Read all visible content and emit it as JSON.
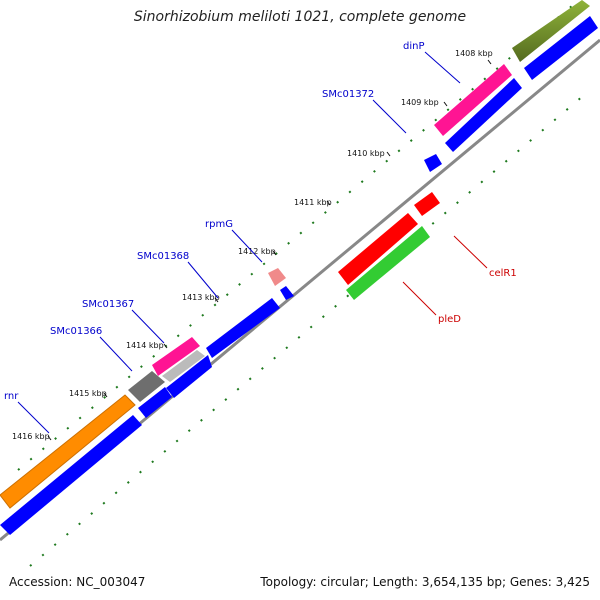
{
  "title": "Sinorhizobium meliloti 1021, complete genome",
  "footer": {
    "accession": "Accession: NC_003047",
    "summary": "Topology: circular; Length: 3,654,135 bp; Genes: 3,425"
  },
  "ticks": [
    {
      "label": "1408 kbp"
    },
    {
      "label": "1409 kbp"
    },
    {
      "label": "1410 kbp"
    },
    {
      "label": "1411 kbp"
    },
    {
      "label": "1412 kbp"
    },
    {
      "label": "1413 kbp"
    },
    {
      "label": "1414 kbp"
    },
    {
      "label": "1415 kbp"
    },
    {
      "label": "1416 kbp"
    }
  ],
  "genes": [
    {
      "name": "dinP",
      "color": "#0000cc"
    },
    {
      "name": "SMc01372",
      "color": "#0000cc"
    },
    {
      "name": "rpmG",
      "color": "#0000cc"
    },
    {
      "name": "SMc01368",
      "color": "#0000cc"
    },
    {
      "name": "SMc01367",
      "color": "#0000cc"
    },
    {
      "name": "SMc01366",
      "color": "#0000cc"
    },
    {
      "name": "rnr",
      "color": "#0000cc"
    },
    {
      "name": "celR1",
      "color": "#cc0000"
    },
    {
      "name": "pleD",
      "color": "#cc0000"
    }
  ],
  "colors": {
    "backbone": "#888888",
    "cds": "#0000ff",
    "gc_skew": "#1f6b1f",
    "olive": "#6b8e23",
    "pink": "#ff1493",
    "orange": "#ff8c00",
    "red": "#ff0000",
    "green": "#33cc33",
    "gray": "#777777"
  }
}
